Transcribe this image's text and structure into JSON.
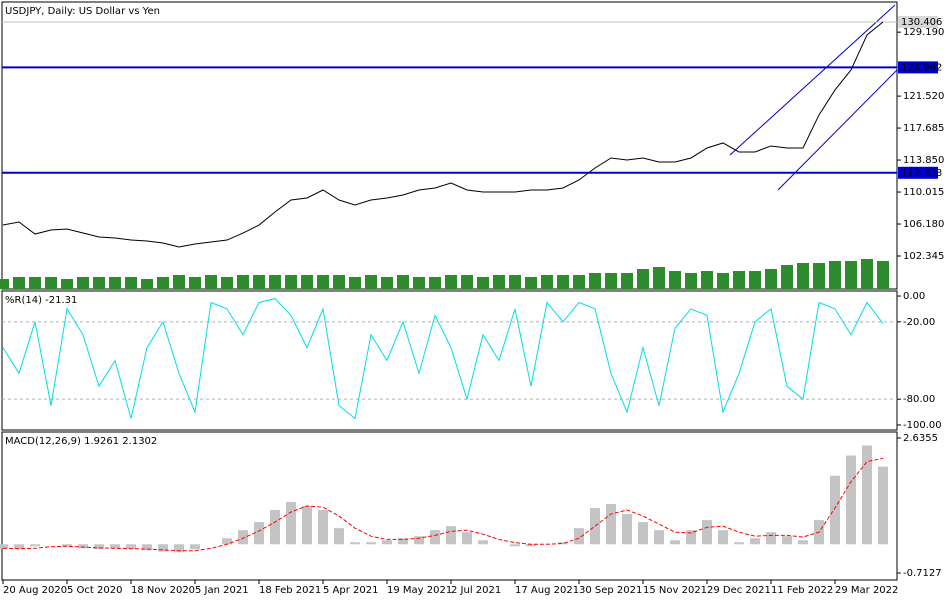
{
  "chart_data": [
    {
      "type": "line",
      "title": "USDJPY, Daily:  US Dollar vs Yen",
      "categories": [
        "20 Aug 2020",
        null,
        null,
        null,
        "5 Oct 2020",
        null,
        null,
        null,
        "18 Nov 2020",
        null,
        null,
        null,
        "5 Jan 2021",
        null,
        null,
        null,
        "18 Feb 2021",
        null,
        null,
        null,
        "5 Apr 2021",
        null,
        null,
        null,
        "19 May 2021",
        null,
        null,
        null,
        "2 Jul 2021",
        null,
        null,
        null,
        "17 Aug 2021",
        null,
        null,
        null,
        "30 Sep 2021",
        null,
        null,
        null,
        "15 Nov 2021",
        null,
        null,
        null,
        "29 Dec 2021",
        null,
        null,
        null,
        "11 Feb 2022",
        null,
        null,
        null,
        "29 Mar 2022",
        null,
        null,
        null
      ],
      "color": "#000000",
      "values": [
        106.06,
        106.42,
        104.98,
        105.46,
        105.58,
        105.1,
        104.62,
        104.5,
        104.26,
        104.14,
        103.9,
        103.42,
        103.78,
        104.02,
        104.26,
        105.1,
        106.06,
        107.62,
        109.06,
        109.3,
        110.26,
        109.06,
        108.46,
        109.06,
        109.3,
        109.66,
        110.26,
        110.5,
        111.1,
        110.26,
        110.02,
        110.02,
        110.02,
        110.26,
        110.26,
        110.5,
        111.46,
        112.9,
        114.1,
        113.86,
        114.1,
        113.62,
        113.62,
        114.1,
        115.3,
        115.9,
        114.82,
        114.82,
        115.54,
        115.3,
        115.3,
        119.26,
        122.26,
        124.65,
        128.85,
        130.406
      ],
      "volume": {
        "color": "#2e8b2e",
        "vlim": [
          0,
          40
        ],
        "values": [
          5,
          6,
          6,
          6,
          5,
          6,
          6,
          6,
          6,
          5,
          6,
          7,
          6,
          7,
          6,
          7,
          7,
          7,
          7,
          7,
          7,
          7,
          6,
          7,
          6,
          7,
          6,
          6,
          7,
          7,
          6,
          7,
          7,
          6,
          7,
          7,
          7,
          8,
          8,
          8,
          10,
          11,
          9,
          8,
          9,
          8,
          9,
          9,
          10,
          12,
          13,
          13,
          14,
          14,
          15,
          14
        ]
      },
      "levels": {
        "color": "#0000cc",
        "values": [
          124.962,
          112.323
        ]
      },
      "ylim": [
        98.388,
        132.804
      ],
      "yticks": [
        {
          "value": 129.19,
          "label": "129.190"
        },
        {
          "value": 121.52,
          "label": "121.520"
        },
        117.685,
        {
          "value": 113.85,
          "label": "113.850"
        },
        110.015,
        {
          "value": 106.18,
          "label": "106.180"
        },
        102.345
      ]
    },
    {
      "type": "line",
      "title": "%R(14) -21.31",
      "color": "#00dde8",
      "values": [
        -40,
        -60,
        -20,
        -85,
        -10,
        -30,
        -70,
        -50,
        -95,
        -40,
        -20,
        -60,
        -90,
        -5,
        -10,
        -30,
        -5,
        -2,
        -15,
        -40,
        -10,
        -85,
        -95,
        -30,
        -50,
        -20,
        -60,
        -15,
        -40,
        -80,
        -30,
        -50,
        -10,
        -70,
        -5,
        -20,
        -5,
        -10,
        -60,
        -90,
        -40,
        -85,
        -25,
        -10,
        -15,
        -90,
        -60,
        -20,
        -10,
        -70,
        -80,
        -5,
        -10,
        -30,
        -5,
        -21.31
      ],
      "ylim": [
        -103.9,
        3.9
      ],
      "yticks": [
        {
          "value": 0,
          "label": "0.00"
        },
        {
          "value": -20,
          "label": "-20.00"
        },
        {
          "value": -80,
          "label": "-80.00"
        },
        {
          "value": -100,
          "label": "-100.00"
        }
      ],
      "dashed_levels": [
        -20,
        -80
      ]
    },
    {
      "type": "bar",
      "title": "MACD(12,26,9) 1.9261 2.1302",
      "color": "#c4c4c4",
      "values": [
        -0.1,
        -0.12,
        -0.05,
        0.0,
        -0.05,
        -0.1,
        -0.12,
        -0.1,
        -0.12,
        -0.15,
        -0.18,
        -0.2,
        -0.12,
        0.0,
        0.15,
        0.35,
        0.55,
        0.85,
        1.05,
        0.95,
        0.85,
        0.4,
        0.05,
        0.05,
        0.1,
        0.15,
        0.2,
        0.35,
        0.45,
        0.3,
        0.1,
        0.0,
        -0.05,
        -0.05,
        0.0,
        0.05,
        0.4,
        0.9,
        1.0,
        0.75,
        0.55,
        0.35,
        0.1,
        0.35,
        0.6,
        0.35,
        0.05,
        0.15,
        0.3,
        0.2,
        0.1,
        0.6,
        1.7,
        2.2,
        2.45,
        1.9261
      ],
      "signal": {
        "color": "#ff0000",
        "values": [
          -0.1,
          -0.11,
          -0.1,
          -0.06,
          -0.05,
          -0.07,
          -0.09,
          -0.1,
          -0.11,
          -0.12,
          -0.14,
          -0.16,
          -0.16,
          -0.1,
          0.0,
          0.15,
          0.33,
          0.55,
          0.8,
          0.95,
          0.92,
          0.7,
          0.4,
          0.2,
          0.12,
          0.12,
          0.15,
          0.22,
          0.32,
          0.35,
          0.25,
          0.12,
          0.04,
          0.0,
          0.0,
          0.02,
          0.15,
          0.45,
          0.75,
          0.85,
          0.7,
          0.5,
          0.3,
          0.28,
          0.42,
          0.45,
          0.3,
          0.2,
          0.22,
          0.22,
          0.18,
          0.3,
          0.9,
          1.55,
          2.05,
          2.1302
        ]
      },
      "ylim": [
        -0.886,
        2.784
      ],
      "yticks": [
        2.6355,
        -0.7127
      ]
    }
  ]
}
